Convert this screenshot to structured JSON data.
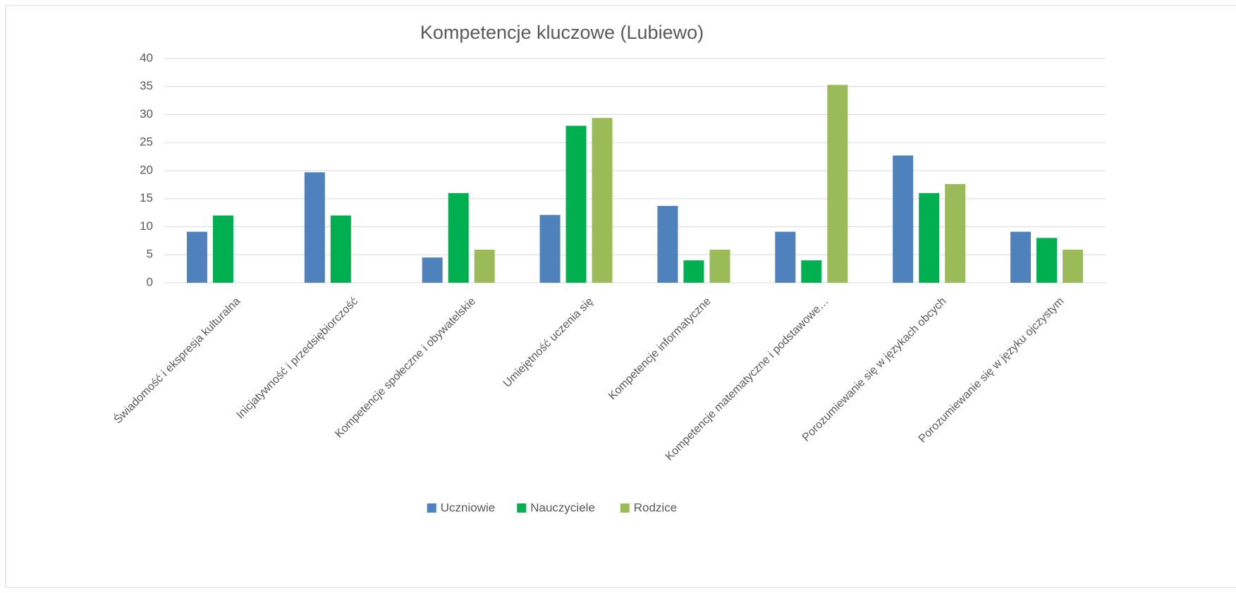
{
  "chart_data": {
    "type": "bar",
    "title": "Kompetencje kluczowe (Lubiewo)",
    "categories": [
      "Świadomość i ekspresja kulturalna",
      "Inicjatywność i przedsiębiorczość",
      "Kompetencje społeczne i obywatelskie",
      "Umiejętność uczenia się",
      "Kompetencje informatyczne",
      "Kompetencje matematyczne i podstawowe…",
      "Porozumiewanie się w językach obcych",
      "Porozumiewanie się w języku ojczystym"
    ],
    "series": [
      {
        "name": "Uczniowie",
        "color": "#4f81bd",
        "values": [
          9.1,
          19.7,
          4.5,
          12.1,
          13.7,
          9.1,
          22.7,
          9.1
        ]
      },
      {
        "name": "Nauczyciele",
        "color": "#00b050",
        "values": [
          12,
          12,
          16,
          28,
          4,
          4,
          16,
          8
        ]
      },
      {
        "name": "Rodzice",
        "color": "#9bbb59",
        "values": [
          null,
          null,
          5.9,
          29.4,
          5.9,
          35.3,
          17.6,
          5.9
        ]
      }
    ],
    "ylim": [
      0,
      40
    ],
    "yticks": [
      0,
      5,
      10,
      15,
      20,
      25,
      30,
      35,
      40
    ],
    "grid": true,
    "legend": "bottom"
  }
}
